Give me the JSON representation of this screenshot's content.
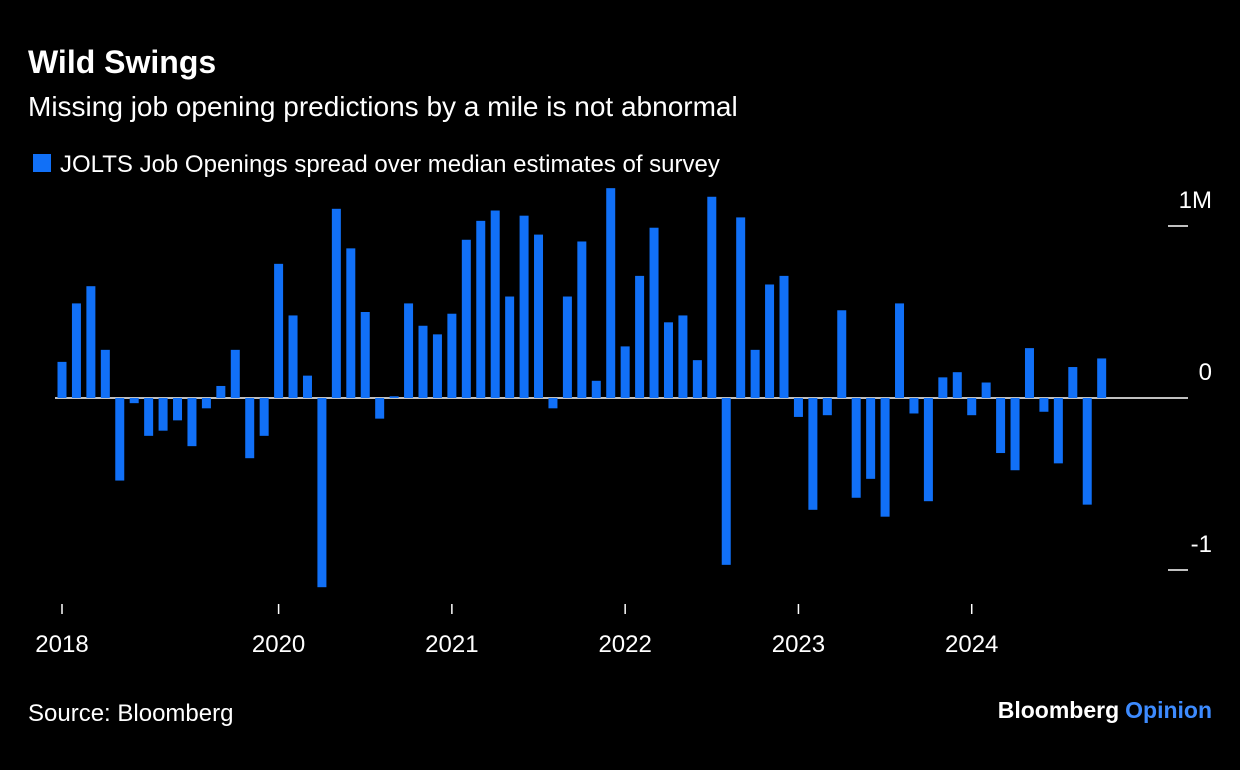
{
  "chart_data": {
    "type": "bar",
    "title": "Wild Swings",
    "subtitle": "Missing job opening predictions by a mile is not abnormal",
    "series": [
      {
        "name": "JOLTS Job Openings spread over median estimates of survey",
        "color": "#1170f7",
        "values": [
          0.21,
          0.55,
          0.65,
          0.28,
          -0.48,
          -0.03,
          -0.22,
          -0.19,
          -0.13,
          -0.28,
          -0.06,
          0.07,
          0.28,
          -0.35,
          -0.22,
          0.78,
          0.48,
          0.13,
          -1.1,
          1.1,
          0.87,
          0.5,
          -0.12,
          0.01,
          0.55,
          0.42,
          0.37,
          0.49,
          0.92,
          1.03,
          1.09,
          0.59,
          1.06,
          0.95,
          -0.06,
          0.59,
          0.91,
          0.1,
          1.22,
          0.3,
          0.71,
          0.99,
          0.44,
          0.48,
          0.22,
          1.17,
          -0.97,
          1.05,
          0.28,
          0.66,
          0.71,
          -0.11,
          -0.65,
          -0.1,
          0.51,
          -0.58,
          -0.47,
          -0.69,
          0.55,
          -0.09,
          -0.6,
          0.12,
          0.15,
          -0.1,
          0.09,
          -0.32,
          -0.42,
          0.29,
          -0.08,
          -0.38,
          0.18,
          -0.62,
          0.23
        ]
      }
    ],
    "categories": [
      "2018",
      null,
      null,
      null,
      null,
      null,
      null,
      null,
      null,
      null,
      null,
      null,
      null,
      null,
      null,
      "2020",
      null,
      null,
      null,
      null,
      null,
      null,
      null,
      null,
      null,
      null,
      null,
      "2021",
      null,
      null,
      null,
      null,
      null,
      null,
      null,
      null,
      null,
      null,
      null,
      "2022",
      null,
      null,
      null,
      null,
      null,
      null,
      null,
      null,
      null,
      null,
      null,
      "2023",
      null,
      null,
      null,
      null,
      null,
      null,
      null,
      null,
      null,
      null,
      null,
      "2024",
      null,
      null,
      null,
      null,
      null,
      null,
      null,
      null,
      null
    ],
    "ylim": [
      -1.2,
      1.25
    ],
    "yticks": [
      {
        "value": 1,
        "label": "1M"
      },
      0,
      -1
    ],
    "source": "Source: Bloomberg",
    "brand": "Bloomberg",
    "brand_suffix": "Opinion"
  }
}
